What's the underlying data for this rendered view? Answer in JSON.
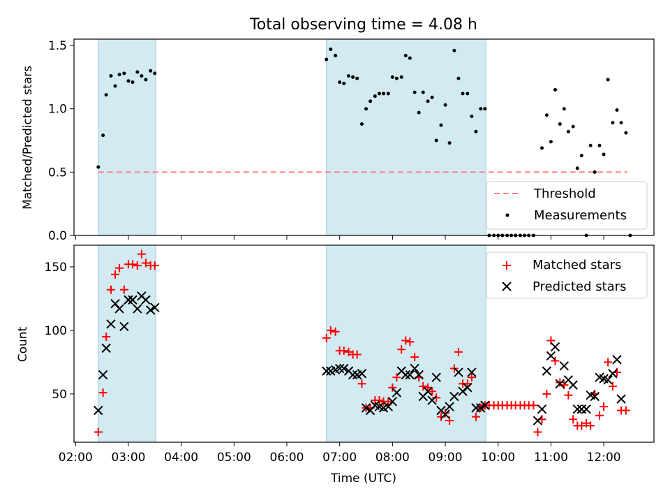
{
  "chart_data": {
    "type": "scatter",
    "title": "Total observing time = 4.08 h",
    "xlabel": "Time (UTC)",
    "x_unit": "hours UTC",
    "xlim": [
      1.97,
      12.95
    ],
    "xticks": [
      2,
      3,
      4,
      5,
      6,
      7,
      8,
      9,
      10,
      11,
      12
    ],
    "xtick_labels": [
      "02:00",
      "03:00",
      "04:00",
      "05:00",
      "06:00",
      "07:00",
      "08:00",
      "09:00",
      "10:00",
      "11:00",
      "12:00"
    ],
    "shaded_intervals": [
      [
        2.43,
        3.52
      ],
      [
        6.75,
        9.77
      ]
    ],
    "shade_color": "#add8e6",
    "panels": [
      {
        "ylabel": "Matched/Predicted stars",
        "ylim": [
          0,
          1.55
        ],
        "yticks": [
          0,
          0.5,
          1.0,
          1.5
        ],
        "ytick_labels": [
          "0.0",
          "0.5",
          "1.0",
          "1.5"
        ],
        "legend_position": "lower right",
        "threshold": {
          "name": "Threshold",
          "y": 0.5,
          "x_range": [
            2.43,
            12.45
          ],
          "color": "#ff7f7f"
        },
        "series": [
          {
            "name": "Measurements",
            "marker": "dot",
            "color": "#000000",
            "points": [
              [
                2.43,
                0.54
              ],
              [
                2.52,
                0.79
              ],
              [
                2.58,
                1.11
              ],
              [
                2.67,
                1.26
              ],
              [
                2.75,
                1.18
              ],
              [
                2.83,
                1.27
              ],
              [
                2.92,
                1.28
              ],
              [
                3.0,
                1.22
              ],
              [
                3.08,
                1.21
              ],
              [
                3.17,
                1.29
              ],
              [
                3.25,
                1.26
              ],
              [
                3.33,
                1.23
              ],
              [
                3.42,
                1.3
              ],
              [
                3.5,
                1.28
              ],
              [
                6.75,
                1.39
              ],
              [
                6.83,
                1.47
              ],
              [
                6.92,
                1.42
              ],
              [
                7.0,
                1.21
              ],
              [
                7.08,
                1.2
              ],
              [
                7.17,
                1.26
              ],
              [
                7.25,
                1.25
              ],
              [
                7.33,
                1.24
              ],
              [
                7.42,
                0.88
              ],
              [
                7.5,
                1.0
              ],
              [
                7.58,
                1.06
              ],
              [
                7.67,
                1.1
              ],
              [
                7.75,
                1.12
              ],
              [
                7.83,
                1.12
              ],
              [
                7.92,
                1.12
              ],
              [
                8.0,
                1.25
              ],
              [
                8.08,
                1.24
              ],
              [
                8.17,
                1.25
              ],
              [
                8.25,
                1.42
              ],
              [
                8.33,
                1.4
              ],
              [
                8.42,
                1.13
              ],
              [
                8.5,
                0.97
              ],
              [
                8.58,
                1.13
              ],
              [
                8.67,
                1.06
              ],
              [
                8.75,
                1.09
              ],
              [
                8.83,
                0.75
              ],
              [
                8.92,
                0.87
              ],
              [
                9.0,
                1.03
              ],
              [
                9.08,
                0.73
              ],
              [
                9.17,
                1.46
              ],
              [
                9.25,
                1.24
              ],
              [
                9.33,
                1.12
              ],
              [
                9.42,
                1.12
              ],
              [
                9.5,
                0.94
              ],
              [
                9.58,
                0.82
              ],
              [
                9.67,
                1.0
              ],
              [
                9.75,
                1.0
              ],
              [
                9.83,
                0.0
              ],
              [
                9.92,
                0.0
              ],
              [
                10.0,
                0.0
              ],
              [
                10.08,
                0.0
              ],
              [
                10.17,
                0.0
              ],
              [
                10.25,
                0.0
              ],
              [
                10.33,
                0.0
              ],
              [
                10.42,
                0.0
              ],
              [
                10.5,
                0.0
              ],
              [
                10.58,
                0.0
              ],
              [
                10.67,
                0.0
              ],
              [
                10.83,
                0.69
              ],
              [
                10.92,
                0.95
              ],
              [
                11.0,
                0.74
              ],
              [
                11.08,
                1.15
              ],
              [
                11.17,
                0.88
              ],
              [
                11.25,
                1.0
              ],
              [
                11.33,
                0.82
              ],
              [
                11.42,
                0.86
              ],
              [
                11.5,
                0.53
              ],
              [
                11.58,
                0.63
              ],
              [
                11.67,
                0.0
              ],
              [
                11.75,
                0.71
              ],
              [
                11.83,
                0.5
              ],
              [
                11.92,
                0.71
              ],
              [
                12.0,
                0.64
              ],
              [
                12.08,
                1.23
              ],
              [
                12.17,
                0.89
              ],
              [
                12.25,
                0.99
              ],
              [
                12.33,
                0.89
              ],
              [
                12.42,
                0.81
              ],
              [
                12.5,
                0.0
              ]
            ]
          }
        ]
      },
      {
        "ylabel": "Count",
        "ylim": [
          12,
          167
        ],
        "yticks": [
          50,
          100,
          150
        ],
        "ytick_labels": [
          "50",
          "100",
          "150"
        ],
        "legend_position": "upper right",
        "series": [
          {
            "name": "Matched stars",
            "marker": "plus",
            "color": "#ff0000",
            "points": [
              [
                2.43,
                20
              ],
              [
                2.52,
                51
              ],
              [
                2.58,
                95
              ],
              [
                2.67,
                132
              ],
              [
                2.75,
                144
              ],
              [
                2.83,
                149
              ],
              [
                2.92,
                132
              ],
              [
                3.0,
                152
              ],
              [
                3.08,
                152
              ],
              [
                3.17,
                151
              ],
              [
                3.25,
                160
              ],
              [
                3.33,
                153
              ],
              [
                3.42,
                151
              ],
              [
                3.5,
                151
              ],
              [
                6.75,
                94
              ],
              [
                6.83,
                100
              ],
              [
                6.92,
                99
              ],
              [
                7.0,
                84
              ],
              [
                7.08,
                84
              ],
              [
                7.17,
                83
              ],
              [
                7.25,
                81
              ],
              [
                7.33,
                81
              ],
              [
                7.42,
                58
              ],
              [
                7.5,
                39
              ],
              [
                7.58,
                39
              ],
              [
                7.67,
                45
              ],
              [
                7.75,
                45
              ],
              [
                7.83,
                44
              ],
              [
                7.92,
                44
              ],
              [
                8.0,
                55
              ],
              [
                8.08,
                63
              ],
              [
                8.17,
                85
              ],
              [
                8.25,
                92
              ],
              [
                8.33,
                91
              ],
              [
                8.42,
                79
              ],
              [
                8.5,
                63
              ],
              [
                8.58,
                56
              ],
              [
                8.67,
                55
              ],
              [
                8.75,
                52
              ],
              [
                8.83,
                47
              ],
              [
                8.92,
                32
              ],
              [
                9.0,
                35
              ],
              [
                9.08,
                29
              ],
              [
                9.17,
                70
              ],
              [
                9.25,
                83
              ],
              [
                9.33,
                58
              ],
              [
                9.42,
                58
              ],
              [
                9.5,
                63
              ],
              [
                9.58,
                32
              ],
              [
                9.67,
                39
              ],
              [
                9.75,
                41
              ],
              [
                9.83,
                41
              ],
              [
                9.92,
                41
              ],
              [
                10.0,
                41
              ],
              [
                10.08,
                41
              ],
              [
                10.17,
                41
              ],
              [
                10.25,
                41
              ],
              [
                10.33,
                41
              ],
              [
                10.42,
                41
              ],
              [
                10.5,
                41
              ],
              [
                10.58,
                41
              ],
              [
                10.67,
                41
              ],
              [
                10.75,
                20
              ],
              [
                10.83,
                30
              ],
              [
                10.92,
                50
              ],
              [
                11.0,
                92
              ],
              [
                11.08,
                76
              ],
              [
                11.17,
                59
              ],
              [
                11.25,
                57
              ],
              [
                11.33,
                49
              ],
              [
                11.42,
                30
              ],
              [
                11.5,
                25
              ],
              [
                11.58,
                25
              ],
              [
                11.67,
                27
              ],
              [
                11.75,
                25
              ],
              [
                11.83,
                50
              ],
              [
                11.92,
                33
              ],
              [
                12.0,
                40
              ],
              [
                12.08,
                75
              ],
              [
                12.17,
                56
              ],
              [
                12.25,
                67
              ],
              [
                12.33,
                37
              ],
              [
                12.42,
                37
              ]
            ]
          },
          {
            "name": "Predicted stars",
            "marker": "x",
            "color": "#000000",
            "points": [
              [
                2.43,
                37
              ],
              [
                2.52,
                65
              ],
              [
                2.58,
                86
              ],
              [
                2.67,
                105
              ],
              [
                2.75,
                121
              ],
              [
                2.83,
                117
              ],
              [
                2.92,
                103
              ],
              [
                3.0,
                124
              ],
              [
                3.08,
                124
              ],
              [
                3.17,
                117
              ],
              [
                3.25,
                127
              ],
              [
                3.33,
                124
              ],
              [
                3.42,
                116
              ],
              [
                3.5,
                118
              ],
              [
                6.75,
                68
              ],
              [
                6.83,
                68
              ],
              [
                6.92,
                69
              ],
              [
                7.0,
                70
              ],
              [
                7.08,
                70
              ],
              [
                7.17,
                68
              ],
              [
                7.25,
                65
              ],
              [
                7.33,
                65
              ],
              [
                7.42,
                66
              ],
              [
                7.5,
                39
              ],
              [
                7.58,
                37
              ],
              [
                7.67,
                41
              ],
              [
                7.75,
                40
              ],
              [
                7.83,
                39
              ],
              [
                7.92,
                40
              ],
              [
                8.0,
                44
              ],
              [
                8.08,
                51
              ],
              [
                8.17,
                68
              ],
              [
                8.25,
                65
              ],
              [
                8.33,
                65
              ],
              [
                8.42,
                70
              ],
              [
                8.5,
                65
              ],
              [
                8.58,
                48
              ],
              [
                8.67,
                52
              ],
              [
                8.75,
                45
              ],
              [
                8.83,
                63
              ],
              [
                8.92,
                37
              ],
              [
                9.0,
                34
              ],
              [
                9.08,
                40
              ],
              [
                9.17,
                48
              ],
              [
                9.25,
                67
              ],
              [
                9.33,
                52
              ],
              [
                9.42,
                55
              ],
              [
                9.5,
                67
              ],
              [
                9.58,
                39
              ],
              [
                9.67,
                39
              ],
              [
                9.75,
                41
              ],
              [
                10.75,
                29
              ],
              [
                10.83,
                38
              ],
              [
                10.92,
                68
              ],
              [
                11.0,
                80
              ],
              [
                11.08,
                87
              ],
              [
                11.17,
                58
              ],
              [
                11.25,
                72
              ],
              [
                11.33,
                61
              ],
              [
                11.42,
                57
              ],
              [
                11.5,
                38
              ],
              [
                11.58,
                38
              ],
              [
                11.67,
                38
              ],
              [
                11.75,
                49
              ],
              [
                11.83,
                48
              ],
              [
                11.92,
                63
              ],
              [
                12.0,
                62
              ],
              [
                12.08,
                61
              ],
              [
                12.17,
                66
              ],
              [
                12.25,
                77
              ],
              [
                12.33,
                46
              ]
            ]
          }
        ]
      }
    ]
  }
}
